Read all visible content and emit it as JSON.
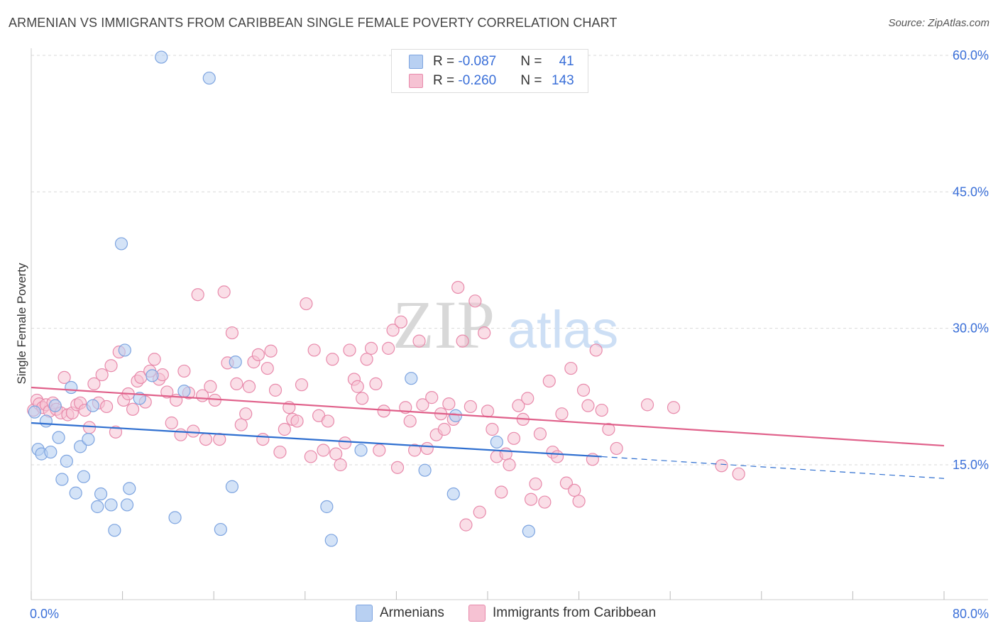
{
  "title": "ARMENIAN VS IMMIGRANTS FROM CARIBBEAN SINGLE FEMALE POVERTY CORRELATION CHART",
  "source": "Source: ZipAtlas.com",
  "watermark": {
    "zip": "ZIP",
    "atlas": "atlas"
  },
  "legend": {
    "series1": {
      "r_label": "R = ",
      "r_value": "-0.087",
      "n_label": "N = ",
      "n_value": "41"
    },
    "series2": {
      "r_label": "R = ",
      "r_value": "-0.260",
      "n_label": "N = ",
      "n_value": "143"
    }
  },
  "colors": {
    "armenian_fill": "#b8d0f2",
    "armenian_stroke": "#7da4e0",
    "armenian_line": "#2f6fd0",
    "caribbean_fill": "#f6c2d3",
    "caribbean_stroke": "#e88aab",
    "caribbean_line": "#e0608a",
    "grid": "#d9d9d9",
    "axis_text": "#3a6fd8"
  },
  "chart_data": {
    "type": "scatter",
    "title": "ARMENIAN VS IMMIGRANTS FROM CARIBBEAN SINGLE FEMALE POVERTY CORRELATION CHART",
    "xlabel": "",
    "ylabel": "Single Female Poverty",
    "xlim": [
      0,
      80
    ],
    "ylim": [
      0,
      62
    ],
    "x_tick_labels": [
      "0.0%",
      "80.0%"
    ],
    "y_ticks": [
      15,
      30,
      45,
      60
    ],
    "y_tick_labels": [
      "15.0%",
      "30.0%",
      "45.0%",
      "60.0%"
    ],
    "grid": true,
    "series": [
      {
        "name": "Armenians",
        "trend": {
          "x0": 0,
          "y0": 19.6,
          "x1": 50,
          "y1": 15.9,
          "dash_to_x": 80,
          "dash_to_y": 13.5
        },
        "points": [
          [
            0.3,
            20.8
          ],
          [
            0.6,
            16.7
          ],
          [
            0.9,
            16.2
          ],
          [
            1.3,
            19.8
          ],
          [
            1.7,
            16.4
          ],
          [
            2.1,
            21.5
          ],
          [
            2.4,
            18.0
          ],
          [
            2.7,
            13.4
          ],
          [
            3.1,
            15.4
          ],
          [
            3.5,
            23.5
          ],
          [
            3.9,
            11.9
          ],
          [
            4.3,
            17.0
          ],
          [
            4.6,
            13.7
          ],
          [
            5.0,
            17.8
          ],
          [
            5.4,
            21.5
          ],
          [
            5.8,
            10.4
          ],
          [
            6.1,
            11.8
          ],
          [
            7.0,
            10.6
          ],
          [
            7.3,
            7.8
          ],
          [
            7.9,
            39.3
          ],
          [
            8.6,
            12.4
          ],
          [
            8.4,
            10.6
          ],
          [
            9.5,
            22.3
          ],
          [
            10.6,
            24.8
          ],
          [
            11.4,
            59.8
          ],
          [
            12.6,
            9.2
          ],
          [
            13.4,
            23.1
          ],
          [
            15.6,
            57.5
          ],
          [
            16.6,
            7.9
          ],
          [
            17.6,
            12.6
          ],
          [
            17.9,
            26.3
          ],
          [
            25.9,
            10.4
          ],
          [
            26.3,
            6.7
          ],
          [
            28.9,
            16.6
          ],
          [
            33.3,
            24.5
          ],
          [
            34.5,
            14.4
          ],
          [
            37.0,
            11.8
          ],
          [
            37.2,
            20.4
          ],
          [
            40.8,
            17.5
          ],
          [
            43.6,
            7.7
          ],
          [
            8.2,
            27.6
          ]
        ]
      },
      {
        "name": "Immigrants from Caribbean",
        "trend": {
          "x0": 0,
          "y0": 23.5,
          "x1": 80,
          "y1": 17.1
        },
        "points": [
          [
            0.2,
            21.0
          ],
          [
            0.5,
            22.1
          ],
          [
            0.7,
            21.7
          ],
          [
            1.0,
            21.3
          ],
          [
            1.3,
            21.6
          ],
          [
            1.6,
            20.9
          ],
          [
            1.9,
            21.8
          ],
          [
            2.2,
            21.1
          ],
          [
            2.6,
            20.7
          ],
          [
            2.9,
            24.6
          ],
          [
            3.2,
            20.5
          ],
          [
            3.6,
            20.7
          ],
          [
            4.0,
            21.6
          ],
          [
            4.3,
            21.8
          ],
          [
            4.7,
            21.0
          ],
          [
            5.1,
            19.1
          ],
          [
            5.5,
            23.9
          ],
          [
            5.9,
            21.8
          ],
          [
            6.2,
            24.9
          ],
          [
            6.6,
            21.4
          ],
          [
            7.0,
            25.9
          ],
          [
            7.4,
            18.6
          ],
          [
            7.7,
            27.4
          ],
          [
            8.1,
            22.1
          ],
          [
            8.5,
            22.8
          ],
          [
            8.9,
            21.1
          ],
          [
            9.3,
            24.2
          ],
          [
            9.6,
            24.6
          ],
          [
            10.0,
            21.9
          ],
          [
            10.4,
            25.3
          ],
          [
            10.8,
            26.6
          ],
          [
            11.2,
            24.4
          ],
          [
            11.5,
            24.9
          ],
          [
            11.9,
            23.0
          ],
          [
            12.3,
            19.6
          ],
          [
            12.7,
            22.1
          ],
          [
            13.1,
            18.3
          ],
          [
            13.4,
            25.3
          ],
          [
            13.8,
            22.9
          ],
          [
            14.2,
            18.7
          ],
          [
            14.6,
            33.7
          ],
          [
            15.0,
            22.6
          ],
          [
            15.3,
            17.8
          ],
          [
            15.7,
            23.6
          ],
          [
            16.1,
            22.1
          ],
          [
            16.5,
            17.8
          ],
          [
            16.9,
            34.0
          ],
          [
            17.2,
            26.2
          ],
          [
            17.6,
            29.5
          ],
          [
            18.0,
            23.9
          ],
          [
            18.4,
            19.4
          ],
          [
            18.8,
            20.6
          ],
          [
            19.1,
            23.6
          ],
          [
            19.5,
            26.3
          ],
          [
            19.9,
            27.1
          ],
          [
            20.3,
            17.8
          ],
          [
            20.7,
            25.6
          ],
          [
            21.0,
            27.5
          ],
          [
            21.4,
            23.2
          ],
          [
            21.8,
            16.4
          ],
          [
            22.2,
            18.9
          ],
          [
            22.6,
            21.3
          ],
          [
            22.9,
            20.0
          ],
          [
            23.3,
            19.8
          ],
          [
            23.7,
            23.8
          ],
          [
            24.1,
            32.7
          ],
          [
            24.5,
            15.9
          ],
          [
            24.8,
            27.6
          ],
          [
            25.2,
            20.4
          ],
          [
            25.6,
            16.6
          ],
          [
            26.0,
            19.8
          ],
          [
            26.4,
            26.6
          ],
          [
            26.7,
            16.2
          ],
          [
            27.1,
            15.0
          ],
          [
            27.5,
            17.4
          ],
          [
            27.9,
            27.6
          ],
          [
            28.3,
            24.4
          ],
          [
            28.6,
            23.6
          ],
          [
            29.0,
            22.3
          ],
          [
            29.4,
            26.6
          ],
          [
            29.8,
            27.8
          ],
          [
            30.2,
            23.9
          ],
          [
            30.5,
            16.6
          ],
          [
            30.9,
            20.9
          ],
          [
            31.3,
            27.8
          ],
          [
            31.7,
            29.8
          ],
          [
            32.1,
            14.7
          ],
          [
            32.4,
            30.7
          ],
          [
            32.8,
            21.3
          ],
          [
            33.2,
            19.8
          ],
          [
            33.6,
            16.6
          ],
          [
            34.0,
            28.6
          ],
          [
            34.3,
            21.6
          ],
          [
            34.7,
            16.8
          ],
          [
            35.1,
            22.4
          ],
          [
            35.5,
            18.3
          ],
          [
            35.9,
            20.6
          ],
          [
            36.2,
            18.9
          ],
          [
            36.6,
            21.7
          ],
          [
            37.0,
            20.0
          ],
          [
            37.4,
            34.5
          ],
          [
            37.8,
            28.6
          ],
          [
            38.1,
            8.4
          ],
          [
            38.5,
            21.4
          ],
          [
            38.9,
            33.0
          ],
          [
            39.3,
            9.8
          ],
          [
            39.7,
            29.5
          ],
          [
            40.0,
            20.9
          ],
          [
            40.4,
            18.9
          ],
          [
            40.8,
            15.9
          ],
          [
            41.2,
            12.0
          ],
          [
            41.6,
            16.2
          ],
          [
            41.9,
            15.0
          ],
          [
            42.3,
            17.9
          ],
          [
            42.7,
            21.5
          ],
          [
            43.1,
            20.0
          ],
          [
            43.5,
            22.3
          ],
          [
            43.8,
            11.2
          ],
          [
            44.2,
            12.9
          ],
          [
            44.6,
            18.4
          ],
          [
            45.0,
            10.9
          ],
          [
            45.4,
            24.2
          ],
          [
            45.7,
            16.4
          ],
          [
            46.1,
            15.9
          ],
          [
            46.5,
            20.6
          ],
          [
            46.9,
            13.0
          ],
          [
            47.3,
            25.6
          ],
          [
            47.6,
            12.2
          ],
          [
            48.0,
            11.0
          ],
          [
            48.4,
            23.2
          ],
          [
            48.8,
            21.5
          ],
          [
            49.2,
            15.6
          ],
          [
            49.5,
            27.6
          ],
          [
            50.0,
            21.0
          ],
          [
            50.6,
            18.9
          ],
          [
            51.3,
            16.8
          ],
          [
            54.0,
            21.6
          ],
          [
            56.3,
            21.3
          ],
          [
            60.5,
            14.9
          ],
          [
            62.0,
            14.0
          ]
        ]
      }
    ]
  },
  "bottom_legend": {
    "series1": "Armenians",
    "series2": "Immigrants from Caribbean"
  }
}
